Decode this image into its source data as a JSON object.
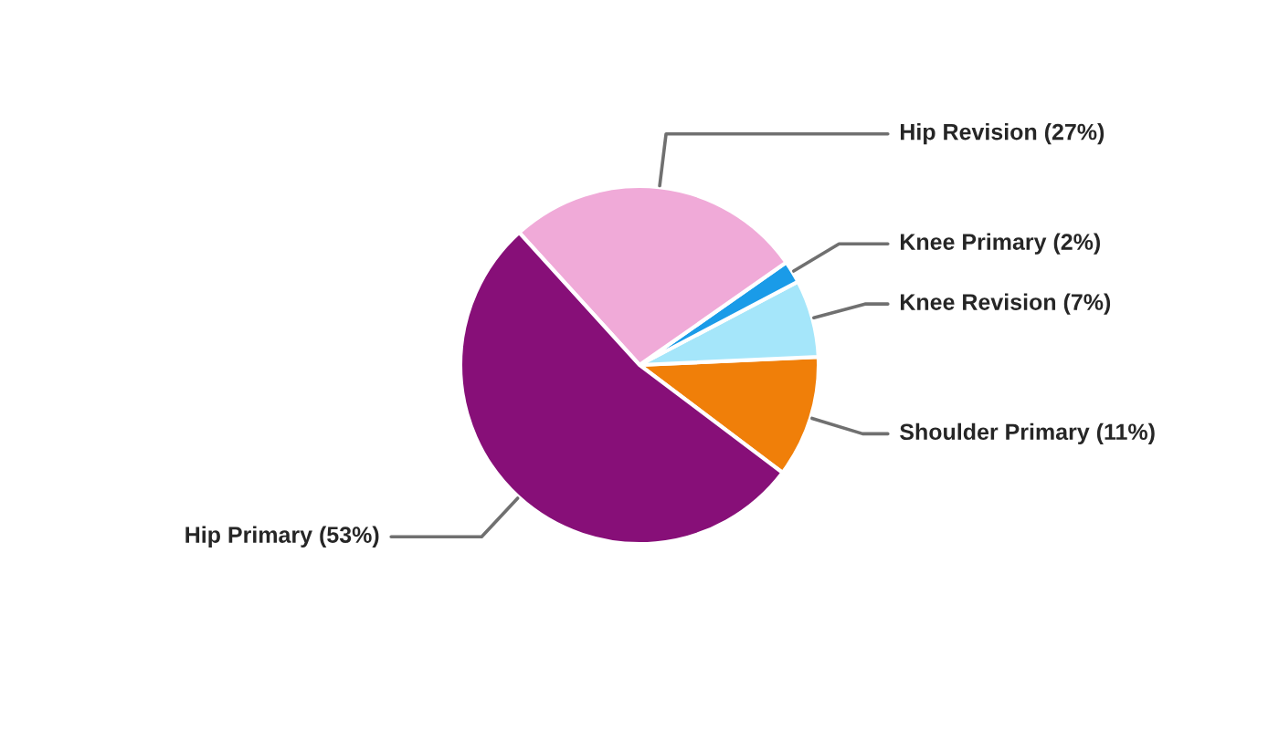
{
  "chart_data": {
    "type": "pie",
    "categories": [
      "Shoulder Primary (11%)",
      "Knee Revision (7%)",
      "Knee Primary (2%)",
      "Hip Revision (27%)",
      "Hip Primary (53%)"
    ],
    "values": [
      11,
      7,
      2,
      27,
      53
    ],
    "colors": [
      "#f07f09",
      "#a5e6fa",
      "#1a9be8",
      "#f0aad8",
      "#870f78"
    ],
    "legend": false
  }
}
